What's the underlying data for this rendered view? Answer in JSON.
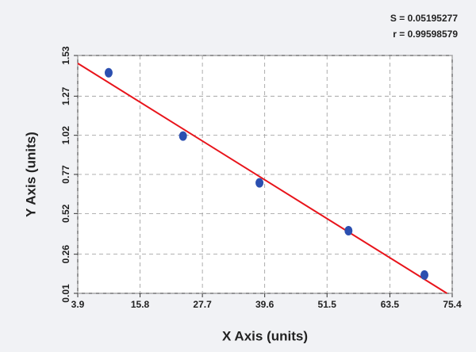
{
  "chart_data": {
    "type": "scatter",
    "annotations": [
      "S = 0.05195277",
      "r = 0.99598579"
    ],
    "x_label": "X Axis (units)",
    "y_label": "Y Axis (units)",
    "x": [
      9.8,
      24.0,
      38.6,
      55.6,
      70.1
    ],
    "series": [
      {
        "color": "#2b4fb0",
        "values": [
          1.42,
          1.015,
          0.716,
          0.41,
          0.127
        ]
      }
    ],
    "fit_line": {
      "x": [
        3.9,
        74.4
      ],
      "y": [
        1.48,
        0.01
      ],
      "color": "#e8141b"
    },
    "xlim": [
      3.9,
      75.4
    ],
    "xticks": [
      3.9,
      15.8,
      27.7,
      39.6,
      51.5,
      63.5,
      75.4
    ],
    "ylim": [
      0.01,
      1.53
    ],
    "yticks": [
      0.01,
      0.26,
      0.52,
      0.77,
      1.02,
      1.27,
      1.53
    ],
    "grid": true
  }
}
